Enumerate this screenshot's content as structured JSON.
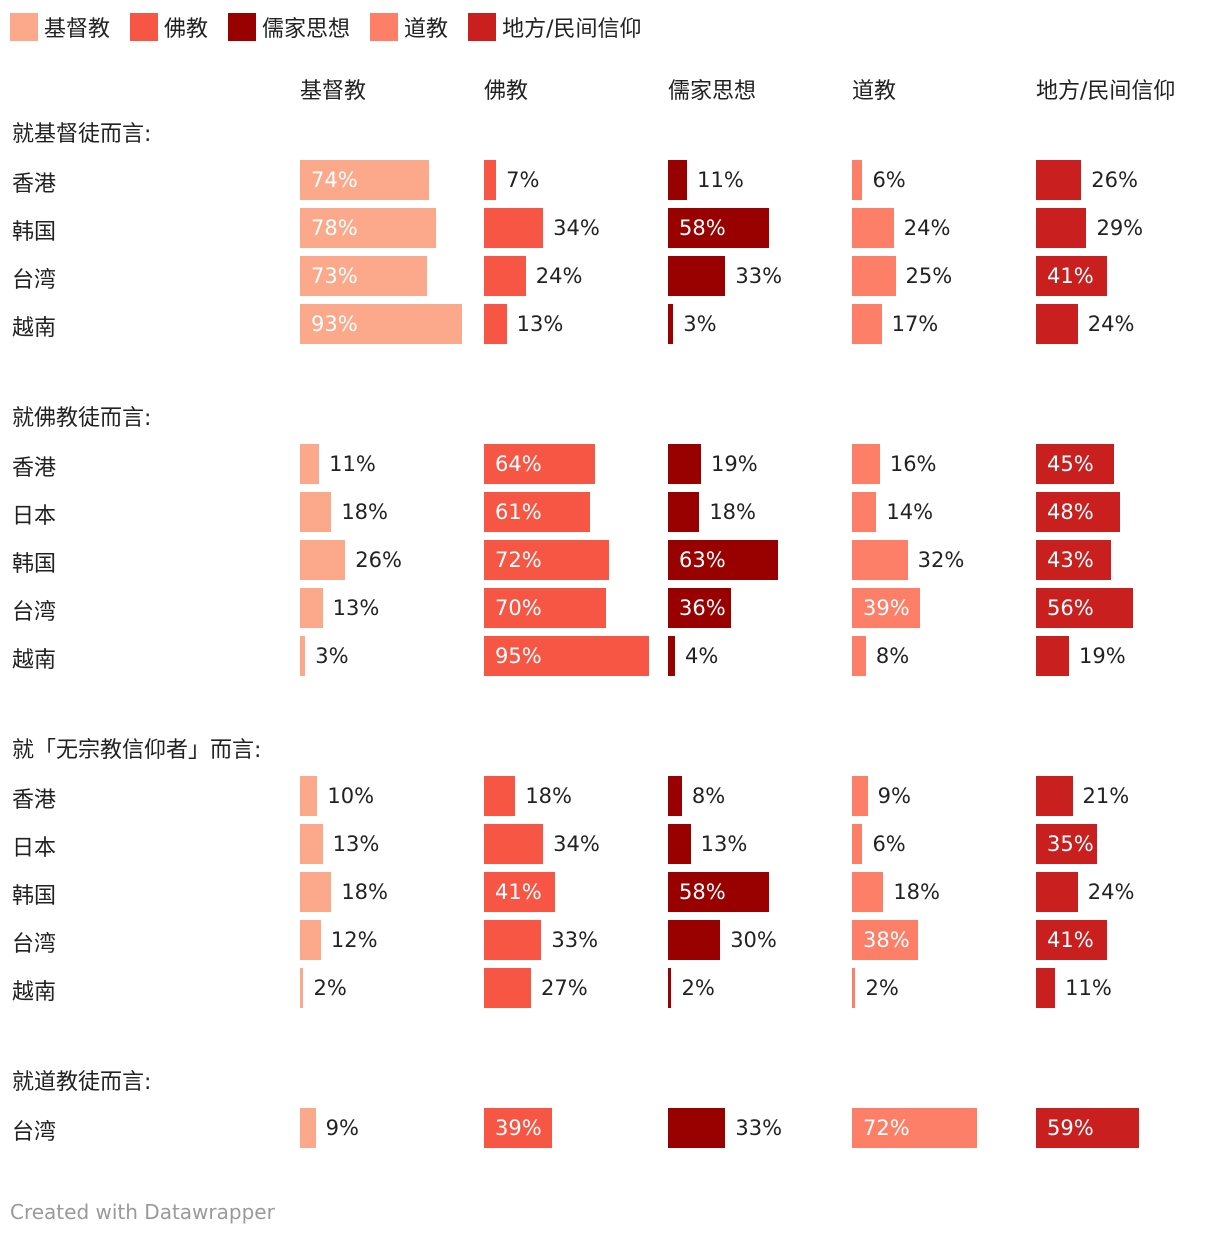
{
  "chart_data": {
    "type": "bar",
    "legend_placement": "top-left",
    "legend": [
      {
        "name": "基督教",
        "color": "#fca88a"
      },
      {
        "name": "佛教",
        "color": "#f65643"
      },
      {
        "name": "儒家思想",
        "color": "#990000"
      },
      {
        "name": "道教",
        "color": "#fd7f68"
      },
      {
        "name": "地方/民间信仰",
        "color": "#c91f1f"
      }
    ],
    "columns": [
      "基督教",
      "佛教",
      "儒家思想",
      "道教",
      "地方/民间信仰"
    ],
    "unit": "%",
    "xlim": [
      0,
      100
    ],
    "groups": [
      {
        "title": "就基督徒而言:",
        "rows": [
          {
            "label": "香港",
            "values": [
              74,
              7,
              11,
              6,
              26
            ]
          },
          {
            "label": "韩国",
            "values": [
              78,
              34,
              58,
              24,
              29
            ]
          },
          {
            "label": "台湾",
            "values": [
              73,
              24,
              33,
              25,
              41
            ]
          },
          {
            "label": "越南",
            "values": [
              93,
              13,
              3,
              17,
              24
            ]
          }
        ]
      },
      {
        "title": "就佛教徒而言:",
        "rows": [
          {
            "label": "香港",
            "values": [
              11,
              64,
              19,
              16,
              45
            ]
          },
          {
            "label": "日本",
            "values": [
              18,
              61,
              18,
              14,
              48
            ]
          },
          {
            "label": "韩国",
            "values": [
              26,
              72,
              63,
              32,
              43
            ]
          },
          {
            "label": "台湾",
            "values": [
              13,
              70,
              36,
              39,
              56
            ]
          },
          {
            "label": "越南",
            "values": [
              3,
              95,
              4,
              8,
              19
            ]
          }
        ]
      },
      {
        "title": "就「无宗教信仰者」而言:",
        "rows": [
          {
            "label": "香港",
            "values": [
              10,
              18,
              8,
              9,
              21
            ]
          },
          {
            "label": "日本",
            "values": [
              13,
              34,
              13,
              6,
              35
            ]
          },
          {
            "label": "韩国",
            "values": [
              18,
              41,
              58,
              18,
              24
            ]
          },
          {
            "label": "台湾",
            "values": [
              12,
              33,
              30,
              38,
              41
            ]
          },
          {
            "label": "越南",
            "values": [
              2,
              27,
              2,
              2,
              11
            ]
          }
        ]
      },
      {
        "title": "就道教徒而言:",
        "rows": [
          {
            "label": "台湾",
            "values": [
              9,
              39,
              33,
              72,
              59
            ]
          }
        ]
      }
    ]
  },
  "footer": "Created with Datawrapper"
}
